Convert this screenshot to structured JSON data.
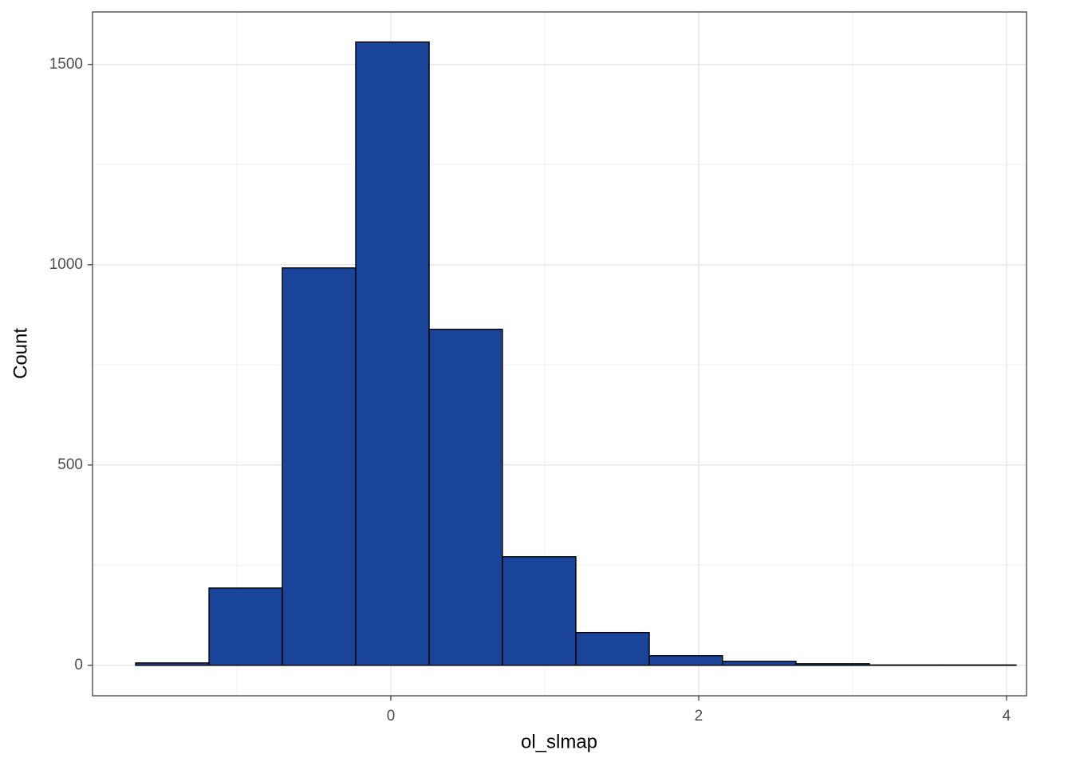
{
  "chart_data": {
    "type": "histogram",
    "x_label": "ol_slmap",
    "y_label": "Count",
    "bins": [
      -1.658,
      -1.181,
      -0.705,
      -0.228,
      0.249,
      0.725,
      1.202,
      1.679,
      2.155,
      2.632,
      3.109,
      3.585,
      4.062
    ],
    "values": [
      6,
      193,
      992,
      1556,
      839,
      271,
      82,
      24,
      10,
      4,
      1,
      1
    ],
    "color": "#1a4499",
    "edgecolor": "#000000",
    "xlim": [
      -1.938,
      4.13
    ],
    "ylim": [
      -76,
      1631
    ],
    "xticks": [
      0,
      2,
      4
    ],
    "yticks": [
      0,
      500,
      1000,
      1500
    ],
    "minor_xticks": [
      -1,
      1,
      3
    ],
    "minor_yticks": [
      250,
      750,
      1250
    ],
    "grid": true
  }
}
